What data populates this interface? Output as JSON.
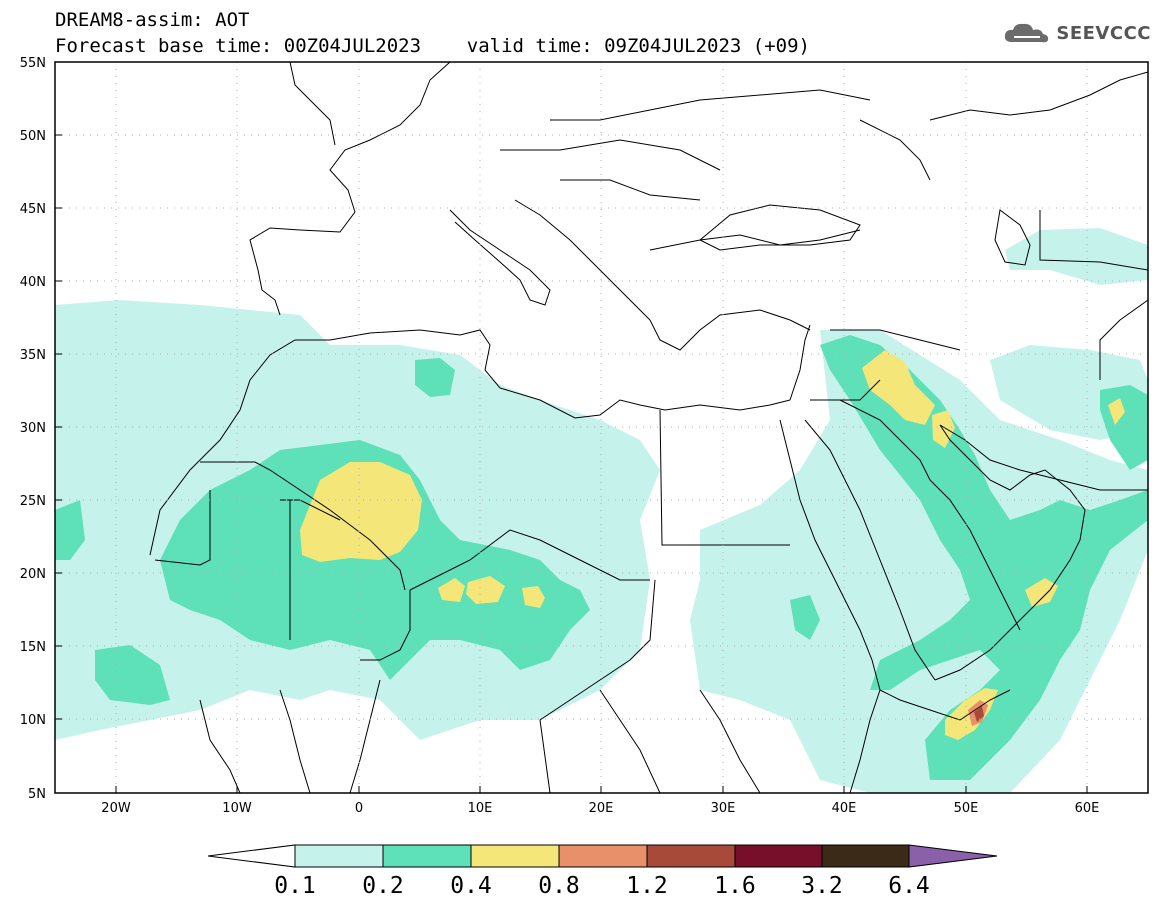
{
  "header": {
    "line1": "DREAM8-assim: AOT",
    "line2": "Forecast base time: 00Z04JUL2023    valid time: 09Z04JUL2023 (+09)"
  },
  "logo": {
    "text": "SEEVCCC",
    "icon": "cloud-icon"
  },
  "map": {
    "lat_range": [
      5,
      55
    ],
    "lon_range": [
      -25,
      65
    ],
    "lat_labels": [
      "55N",
      "50N",
      "45N",
      "40N",
      "35N",
      "30N",
      "25N",
      "20N",
      "15N",
      "10N",
      "5N"
    ],
    "lon_labels": [
      "20W",
      "10W",
      "0",
      "10E",
      "20E",
      "30E",
      "40E",
      "50E",
      "60E"
    ],
    "grid": true
  },
  "colorbar": {
    "labels": [
      "0.1",
      "0.2",
      "0.4",
      "0.8",
      "1.2",
      "1.6",
      "3.2",
      "6.4"
    ],
    "colors": [
      "#c6f2ec",
      "#5ee0b8",
      "#f5e67a",
      "#e8906a",
      "#a84a3a",
      "#780f2a",
      "#3c2a18",
      "#8a60a8"
    ]
  },
  "colors": {
    "c1": "#c6f2ec",
    "c2": "#5ee0b8",
    "c3": "#f5e67a",
    "c4": "#e8906a",
    "c5": "#a84a3a"
  }
}
